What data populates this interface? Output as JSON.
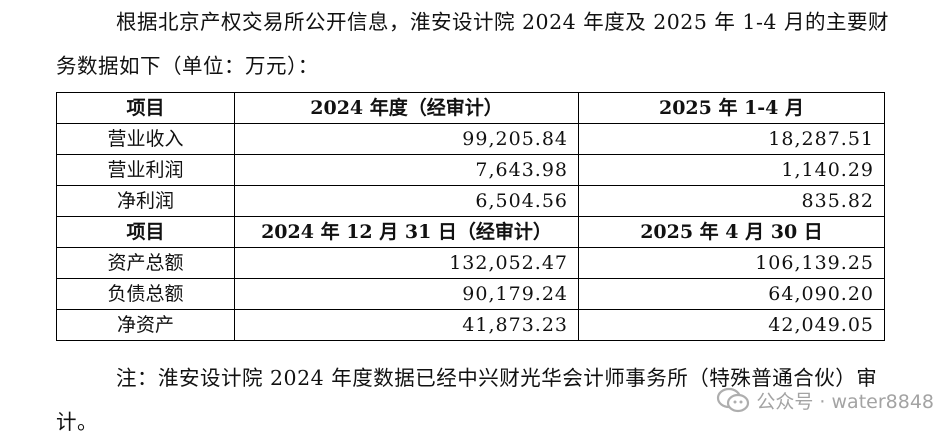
{
  "intro_text": "根据北京产权交易所公开信息，淮安设计院 2024 年度及 2025 年 1-4 月的主要财务数据如下（单位：万元）：",
  "table": {
    "header1": [
      "项目",
      "2024 年度（经审计）",
      "2025 年 1-4 月"
    ],
    "rows1": [
      {
        "label": "营业收入",
        "v1": "99,205.84",
        "v2": "18,287.51"
      },
      {
        "label": "营业利润",
        "v1": "7,643.98",
        "v2": "1,140.29"
      },
      {
        "label": "净利润",
        "v1": "6,504.56",
        "v2": "835.82"
      }
    ],
    "header2": [
      "项目",
      "2024 年 12 月 31 日（经审计）",
      "2025 年 4 月 30 日"
    ],
    "rows2": [
      {
        "label": "资产总额",
        "v1": "132,052.47",
        "v2": "106,139.25"
      },
      {
        "label": "负债总额",
        "v1": "90,179.24",
        "v2": "64,090.20"
      },
      {
        "label": "净资产",
        "v1": "41,873.23",
        "v2": "42,049.05"
      }
    ]
  },
  "note_text": "注：淮安设计院 2024 年度数据已经中兴财光华会计师事务所（特殊普通合伙）审计。",
  "watermark": {
    "icon": "wechat-official-account-icon",
    "text": "公众号 · water8848"
  }
}
